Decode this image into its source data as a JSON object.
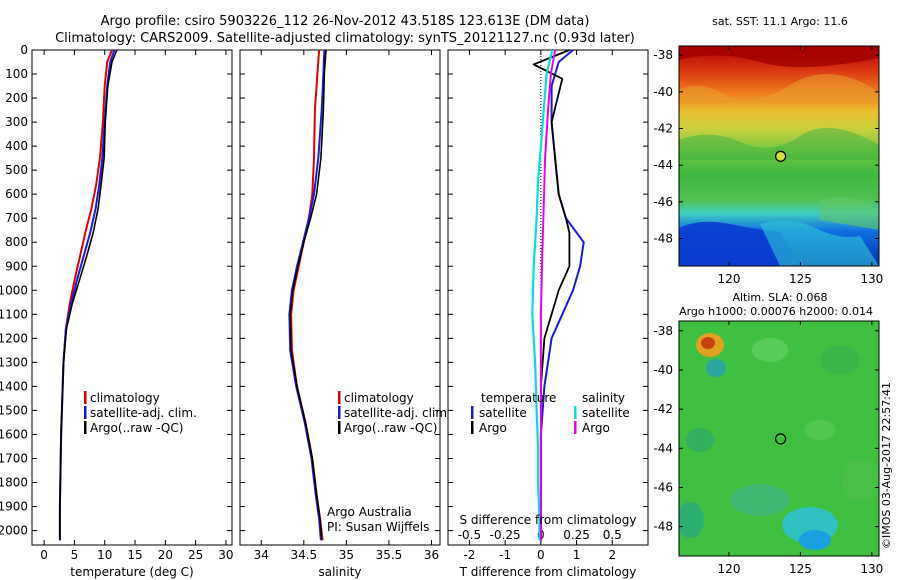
{
  "figure": {
    "title1": "Argo profile: csiro 5903226_112 26-Nov-2012 43.518S 123.613E (DM data)",
    "title2": "Climatology: CARS2009. Satellite-adjusted climatology: synTS_20121127.nc (0.93d later)",
    "side_credit": "©IMOS 03-Aug-2017 22:57:41",
    "argo_note1": "Argo Australia",
    "argo_note2": "PI: Susan Wijffels"
  },
  "colors": {
    "climatology": "#e00000",
    "satellite": "#1a1adc",
    "argo": "#000000",
    "s_satellite": "#00e0e0",
    "s_argo": "#ee00ee"
  },
  "chart_data": [
    {
      "type": "line",
      "name": "temperature-profile",
      "xlabel": "temperature (deg C)",
      "ylabel": "",
      "xlim": [
        -2,
        31
      ],
      "ylim": [
        2060,
        0
      ],
      "xticks": [
        0,
        5,
        10,
        15,
        20,
        25,
        30
      ],
      "yticks": [
        0,
        100,
        200,
        300,
        400,
        500,
        600,
        700,
        800,
        900,
        1000,
        1100,
        1200,
        1300,
        1400,
        1500,
        1600,
        1700,
        1800,
        1900,
        2000
      ],
      "legend": [
        "climatology",
        "satellite-adj. clim.",
        "Argo(..raw -QC)"
      ],
      "series": [
        {
          "name": "climatology",
          "x": [
            11.2,
            10.4,
            10.0,
            9.7,
            9.2,
            8.6,
            7.8,
            6.8,
            5.9,
            5.0,
            4.2,
            3.6,
            3.2,
            3.0,
            2.8,
            2.7,
            2.6,
            2.6
          ],
          "y": [
            0,
            50,
            150,
            300,
            450,
            560,
            660,
            760,
            860,
            960,
            1060,
            1160,
            1300,
            1450,
            1600,
            1750,
            1900,
            2040
          ]
        },
        {
          "name": "satellite-adj. clim.",
          "x": [
            11.6,
            10.9,
            10.4,
            10.0,
            9.6,
            9.1,
            8.5,
            7.6,
            6.5,
            5.4,
            4.4,
            3.6,
            3.2,
            3.0,
            2.8,
            2.7,
            2.6,
            2.6
          ],
          "y": [
            0,
            50,
            150,
            300,
            450,
            560,
            660,
            760,
            860,
            960,
            1060,
            1160,
            1300,
            1450,
            1600,
            1750,
            1900,
            2040
          ]
        },
        {
          "name": "Argo(..raw -QC)",
          "x": [
            12.0,
            11.2,
            10.5,
            10.1,
            9.9,
            9.4,
            8.9,
            8.1,
            7.0,
            5.8,
            4.6,
            3.7,
            3.2,
            3.0,
            2.8,
            2.7,
            2.6,
            2.6
          ],
          "y": [
            0,
            50,
            150,
            300,
            450,
            560,
            660,
            760,
            860,
            960,
            1060,
            1160,
            1300,
            1450,
            1600,
            1750,
            1900,
            2040
          ]
        }
      ]
    },
    {
      "type": "line",
      "name": "salinity-profile",
      "xlabel": "salinity",
      "ylabel": "",
      "xlim": [
        33.75,
        36.1
      ],
      "ylim": [
        2060,
        0
      ],
      "xticks": [
        34,
        34.5,
        35,
        35.5,
        36
      ],
      "xtick_labels": [
        "34",
        "34.5",
        "35",
        "35.5",
        "36"
      ],
      "legend": [
        "climatology",
        "satellite-adj. clim.",
        "Argo(..raw -QC)"
      ],
      "series": [
        {
          "name": "climatology",
          "x": [
            34.68,
            34.66,
            34.63,
            34.62,
            34.6,
            34.56,
            34.5,
            34.44,
            34.38,
            34.35,
            34.36,
            34.42,
            34.52,
            34.6,
            34.65,
            34.69,
            34.72
          ],
          "y": [
            0,
            100,
            250,
            450,
            600,
            700,
            800,
            900,
            1000,
            1100,
            1250,
            1400,
            1550,
            1700,
            1850,
            1950,
            2040
          ]
        },
        {
          "name": "satellite-adj. clim.",
          "x": [
            34.74,
            34.73,
            34.71,
            34.67,
            34.62,
            34.56,
            34.49,
            34.42,
            34.36,
            34.33,
            34.34,
            34.41,
            34.51,
            34.59,
            34.64,
            34.68,
            34.7
          ],
          "y": [
            0,
            100,
            250,
            450,
            600,
            700,
            800,
            900,
            1000,
            1100,
            1250,
            1400,
            1550,
            1700,
            1850,
            1950,
            2040
          ]
        },
        {
          "name": "Argo(..raw -QC)",
          "x": [
            34.76,
            34.74,
            34.73,
            34.7,
            34.65,
            34.58,
            34.5,
            34.43,
            34.37,
            34.34,
            34.35,
            34.42,
            34.52,
            34.6,
            34.65,
            34.69,
            34.71
          ],
          "y": [
            0,
            100,
            250,
            450,
            600,
            700,
            800,
            900,
            1000,
            1100,
            1250,
            1400,
            1550,
            1700,
            1850,
            1950,
            2040
          ]
        }
      ]
    },
    {
      "type": "line",
      "name": "difference-profile",
      "xlabel": "T difference from climatology",
      "xlabel_top": "S difference from climatology",
      "xlim": [
        -2.6,
        3.0
      ],
      "ylim": [
        2060,
        0
      ],
      "xticks": [
        -2,
        -1,
        0,
        1,
        2
      ],
      "xtick_labels": [
        "-2",
        "-1",
        "0",
        "1",
        "2"
      ],
      "xticks_top": [
        -0.5,
        -0.25,
        0,
        0.25,
        0.5
      ],
      "xticks_top_labels": [
        "-0.5",
        "-0.25",
        "0",
        "0.25",
        "0.5"
      ],
      "legend_titles": [
        "temperature",
        "salinity"
      ],
      "legend": [
        "satellite",
        "Argo",
        "satellite",
        "Argo"
      ],
      "series": [
        {
          "name": "T satellite",
          "x": [
            0.9,
            0.5,
            0.3,
            0.3,
            0.4,
            0.5,
            0.7,
            1.0,
            1.2,
            1.1,
            0.9,
            0.6,
            0.3,
            0.1,
            0.0,
            0.0,
            0.0
          ],
          "y": [
            0,
            50,
            150,
            300,
            450,
            600,
            700,
            760,
            800,
            900,
            1000,
            1100,
            1200,
            1400,
            1600,
            1800,
            2040
          ]
        },
        {
          "name": "T Argo",
          "x": [
            0.8,
            -0.2,
            0.6,
            0.3,
            0.4,
            0.5,
            0.7,
            0.8,
            0.8,
            0.8,
            0.5,
            0.3,
            0.1,
            0.0,
            0.0,
            0.0,
            0.0
          ],
          "y": [
            0,
            60,
            120,
            300,
            450,
            600,
            700,
            760,
            800,
            900,
            1000,
            1100,
            1200,
            1400,
            1600,
            1800,
            2040
          ]
        },
        {
          "name": "S satellite",
          "x": [
            0.08,
            0.04,
            0.02,
            0.0,
            -0.02,
            -0.03,
            -0.05,
            -0.06,
            -0.04,
            -0.03,
            -0.02,
            -0.02,
            -0.01,
            -0.01
          ],
          "y": [
            0,
            100,
            250,
            400,
            550,
            700,
            900,
            1100,
            1300,
            1500,
            1650,
            1800,
            1950,
            2040
          ]
        },
        {
          "name": "S Argo",
          "x": [
            0.1,
            0.07,
            0.05,
            0.03,
            0.02,
            0.01,
            0.0,
            0.0,
            0.0,
            0.0,
            0.0
          ],
          "y": [
            0,
            100,
            250,
            450,
            650,
            850,
            1100,
            1400,
            1700,
            1900,
            2040
          ]
        }
      ]
    },
    {
      "type": "heatmap",
      "name": "sst-map",
      "title": "sat. SST: 11.1  Argo: 11.6",
      "xlim": [
        116.5,
        130.5
      ],
      "ylim": [
        -49.5,
        -37.5
      ],
      "xticks": [
        120,
        125,
        130
      ],
      "yticks": [
        -38,
        -40,
        -42,
        -44,
        -46,
        -48
      ],
      "marker": {
        "lon": 123.613,
        "lat": -43.518
      }
    },
    {
      "type": "heatmap",
      "name": "sla-map",
      "title": "Altim. SLA: 0.068",
      "subtitle": "Argo h1000: 0.00076 h2000: 0.014",
      "xlim": [
        116.5,
        130.5
      ],
      "ylim": [
        -49.5,
        -37.5
      ],
      "xticks": [
        120,
        125,
        130
      ],
      "yticks": [
        -38,
        -40,
        -42,
        -44,
        -46,
        -48
      ],
      "marker": {
        "lon": 123.613,
        "lat": -43.518
      }
    }
  ]
}
